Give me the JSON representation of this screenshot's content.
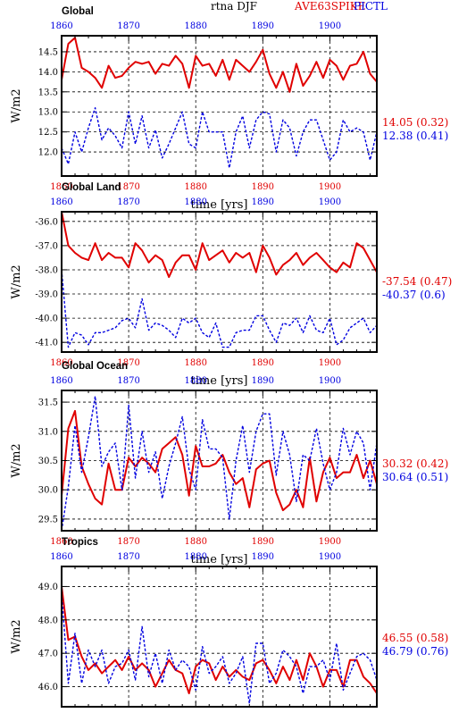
{
  "header": {
    "title": "rtna DJF",
    "series_label_1": "AVE63SPIKE",
    "series_label_2": "PICTL"
  },
  "colors": {
    "series_1": "#e00000",
    "series_2": "#0000e0"
  },
  "chart_data": [
    {
      "type": "line",
      "title": "Global",
      "xlabel": "time [yrs]",
      "ylabel": "W/m2",
      "xlim": [
        1860,
        1907
      ],
      "ylim": [
        11.4,
        14.9
      ],
      "x_ticks": [
        1860,
        1870,
        1880,
        1890,
        1900
      ],
      "y_ticks": [
        12.0,
        12.5,
        13.0,
        13.5,
        14.0,
        14.5
      ],
      "y_tick_labels": [
        "12.0",
        "12.5",
        "13.0",
        "13.5",
        "14.0",
        "14.5"
      ],
      "grid": true,
      "x": [
        1860,
        1861,
        1862,
        1863,
        1864,
        1865,
        1866,
        1867,
        1868,
        1869,
        1870,
        1871,
        1872,
        1873,
        1874,
        1875,
        1876,
        1877,
        1878,
        1879,
        1880,
        1881,
        1882,
        1883,
        1884,
        1885,
        1886,
        1887,
        1888,
        1889,
        1890,
        1891,
        1892,
        1893,
        1894,
        1895,
        1896,
        1897,
        1898,
        1899,
        1900,
        1901,
        1902,
        1903,
        1904,
        1905,
        1906,
        1907
      ],
      "series": [
        {
          "name": "AVE63SPIKE",
          "color": "#e00000",
          "style": "solid",
          "stat": "14.05 (0.32)",
          "values": [
            13.8,
            14.7,
            14.85,
            14.1,
            14.0,
            13.85,
            13.6,
            14.15,
            13.85,
            13.9,
            14.1,
            14.25,
            14.2,
            14.25,
            13.95,
            14.2,
            14.15,
            14.4,
            14.2,
            13.6,
            14.4,
            14.15,
            14.2,
            13.9,
            14.3,
            13.8,
            14.3,
            14.15,
            14.0,
            14.25,
            14.55,
            13.95,
            13.6,
            14.0,
            13.5,
            14.2,
            13.65,
            13.9,
            14.25,
            13.85,
            14.3,
            14.15,
            13.8,
            14.15,
            14.2,
            14.5,
            13.95,
            13.75
          ]
        },
        {
          "name": "PICTL",
          "color": "#0000e0",
          "style": "dashed",
          "stat": "12.38 (0.41)",
          "values": [
            12.1,
            11.7,
            12.5,
            12.0,
            12.6,
            13.1,
            12.3,
            12.6,
            12.4,
            12.1,
            13.0,
            12.2,
            12.9,
            12.1,
            12.55,
            11.85,
            12.2,
            12.6,
            13.0,
            12.2,
            12.1,
            13.0,
            12.5,
            12.5,
            12.5,
            11.6,
            12.5,
            12.9,
            12.1,
            12.8,
            13.0,
            12.95,
            12.0,
            12.8,
            12.6,
            11.9,
            12.5,
            12.8,
            12.8,
            12.3,
            11.8,
            12.0,
            12.8,
            12.5,
            12.6,
            12.5,
            11.8,
            12.5
          ]
        }
      ]
    },
    {
      "type": "line",
      "title": "Global Land",
      "xlabel": "time [yrs]",
      "ylabel": "W/m2",
      "xlim": [
        1860,
        1907
      ],
      "ylim": [
        -41.4,
        -35.6
      ],
      "x_ticks": [
        1860,
        1870,
        1880,
        1890,
        1900
      ],
      "y_ticks": [
        -41,
        -40,
        -39,
        -38,
        -37,
        -36
      ],
      "y_tick_labels": [
        "-41.0",
        "-40.0",
        "-39.0",
        "-38.0",
        "-37.0",
        "-36.0"
      ],
      "grid": true,
      "x": [
        1860,
        1861,
        1862,
        1863,
        1864,
        1865,
        1866,
        1867,
        1868,
        1869,
        1870,
        1871,
        1872,
        1873,
        1874,
        1875,
        1876,
        1877,
        1878,
        1879,
        1880,
        1881,
        1882,
        1883,
        1884,
        1885,
        1886,
        1887,
        1888,
        1889,
        1890,
        1891,
        1892,
        1893,
        1894,
        1895,
        1896,
        1897,
        1898,
        1899,
        1900,
        1901,
        1902,
        1903,
        1904,
        1905,
        1906,
        1907
      ],
      "series": [
        {
          "name": "AVE63SPIKE",
          "color": "#e00000",
          "style": "solid",
          "stat": "-37.54 (0.47)",
          "values": [
            -35.6,
            -37.0,
            -37.3,
            -37.5,
            -37.6,
            -36.9,
            -37.6,
            -37.3,
            -37.5,
            -37.5,
            -37.9,
            -36.9,
            -37.2,
            -37.7,
            -37.4,
            -37.6,
            -38.3,
            -37.7,
            -37.4,
            -37.4,
            -38.0,
            -36.9,
            -37.6,
            -37.4,
            -37.2,
            -37.7,
            -37.3,
            -37.5,
            -37.3,
            -38.1,
            -37.0,
            -37.5,
            -38.2,
            -37.8,
            -37.6,
            -37.3,
            -37.8,
            -37.5,
            -37.3,
            -37.6,
            -37.9,
            -38.1,
            -37.7,
            -37.9,
            -36.9,
            -37.1,
            -37.6,
            -38.1
          ]
        },
        {
          "name": "PICTL",
          "color": "#0000e0",
          "style": "dashed",
          "stat": "-40.37 (0.6)",
          "values": [
            -38.0,
            -41.2,
            -40.6,
            -40.7,
            -41.1,
            -40.6,
            -40.6,
            -40.5,
            -40.4,
            -40.1,
            -40.0,
            -40.4,
            -39.2,
            -40.5,
            -40.2,
            -40.3,
            -40.5,
            -40.8,
            -40.0,
            -40.2,
            -40.0,
            -40.6,
            -40.8,
            -40.2,
            -41.2,
            -41.2,
            -40.6,
            -40.5,
            -40.5,
            -39.9,
            -39.9,
            -40.5,
            -41.0,
            -40.2,
            -40.3,
            -40.0,
            -40.6,
            -39.9,
            -40.5,
            -40.6,
            -40.0,
            -41.1,
            -40.9,
            -40.4,
            -40.2,
            -40.0,
            -40.6,
            -40.3
          ]
        }
      ]
    },
    {
      "type": "line",
      "title": "Global Ocean",
      "xlabel": "time [yrs]",
      "ylabel": "W/m2",
      "xlim": [
        1860,
        1907
      ],
      "ylim": [
        29.3,
        31.7
      ],
      "x_ticks": [
        1860,
        1870,
        1880,
        1890,
        1900
      ],
      "y_ticks": [
        29.5,
        30.0,
        30.5,
        31.0,
        31.5
      ],
      "y_tick_labels": [
        "29.5",
        "30.0",
        "30.5",
        "31.0",
        "31.5"
      ],
      "grid": true,
      "x": [
        1860,
        1861,
        1862,
        1863,
        1864,
        1865,
        1866,
        1867,
        1868,
        1869,
        1870,
        1871,
        1872,
        1873,
        1874,
        1875,
        1876,
        1877,
        1878,
        1879,
        1880,
        1881,
        1882,
        1883,
        1884,
        1885,
        1886,
        1887,
        1888,
        1889,
        1890,
        1891,
        1892,
        1893,
        1894,
        1895,
        1896,
        1897,
        1898,
        1899,
        1900,
        1901,
        1902,
        1903,
        1904,
        1905,
        1906,
        1907
      ],
      "series": [
        {
          "name": "AVE63SPIKE",
          "color": "#e00000",
          "style": "solid",
          "stat": "30.32 (0.42)",
          "values": [
            29.9,
            31.05,
            31.35,
            30.4,
            30.1,
            29.85,
            29.75,
            30.45,
            30.0,
            30.0,
            30.55,
            30.4,
            30.55,
            30.45,
            30.3,
            30.7,
            30.8,
            30.9,
            30.6,
            29.9,
            30.75,
            30.4,
            30.4,
            30.45,
            30.6,
            30.3,
            30.1,
            30.2,
            29.7,
            30.35,
            30.45,
            30.5,
            29.95,
            29.65,
            29.75,
            30.0,
            29.7,
            30.55,
            29.8,
            30.3,
            30.55,
            30.2,
            30.3,
            30.3,
            30.6,
            30.2,
            30.5,
            30.1
          ]
        },
        {
          "name": "PICTL",
          "color": "#0000e0",
          "style": "dashed",
          "stat": "30.64 (0.51)",
          "values": [
            29.3,
            30.05,
            31.1,
            30.3,
            30.9,
            31.6,
            30.4,
            30.65,
            30.8,
            30.0,
            31.45,
            30.2,
            31.0,
            30.3,
            30.65,
            29.85,
            30.4,
            30.8,
            31.25,
            30.35,
            30.0,
            31.2,
            30.7,
            30.7,
            30.55,
            29.5,
            30.5,
            31.1,
            30.3,
            31.0,
            31.3,
            31.3,
            30.25,
            31.0,
            30.6,
            29.8,
            30.6,
            30.5,
            31.05,
            30.45,
            30.0,
            30.3,
            31.05,
            30.6,
            31.0,
            30.8,
            30.0,
            30.8
          ]
        }
      ]
    },
    {
      "type": "line",
      "title": "Tropics",
      "xlabel": "time [yrs]",
      "ylabel": "W/m2",
      "xlim": [
        1860,
        1907
      ],
      "ylim": [
        45.4,
        49.6
      ],
      "x_ticks": [
        1860,
        1870,
        1880,
        1890,
        1900
      ],
      "y_ticks": [
        46.0,
        47.0,
        48.0,
        49.0
      ],
      "y_tick_labels": [
        "46.0",
        "47.0",
        "48.0",
        "49.0"
      ],
      "grid": true,
      "x": [
        1860,
        1861,
        1862,
        1863,
        1864,
        1865,
        1866,
        1867,
        1868,
        1869,
        1870,
        1871,
        1872,
        1873,
        1874,
        1875,
        1876,
        1877,
        1878,
        1879,
        1880,
        1881,
        1882,
        1883,
        1884,
        1885,
        1886,
        1887,
        1888,
        1889,
        1890,
        1891,
        1892,
        1893,
        1894,
        1895,
        1896,
        1897,
        1898,
        1899,
        1900,
        1901,
        1902,
        1903,
        1904,
        1905,
        1906,
        1907
      ],
      "series": [
        {
          "name": "AVE63SPIKE",
          "color": "#e00000",
          "style": "solid",
          "stat": "46.55 (0.58)",
          "values": [
            49.0,
            47.4,
            47.5,
            46.9,
            46.5,
            46.7,
            46.4,
            46.6,
            46.8,
            46.5,
            46.9,
            46.5,
            46.7,
            46.5,
            46.0,
            46.4,
            46.8,
            46.5,
            46.4,
            45.8,
            46.6,
            46.8,
            46.7,
            46.2,
            46.6,
            46.3,
            46.5,
            46.3,
            46.2,
            46.7,
            46.8,
            46.5,
            46.1,
            46.6,
            46.2,
            46.8,
            46.2,
            47.0,
            46.6,
            46.0,
            46.5,
            46.5,
            46.0,
            46.8,
            46.8,
            46.3,
            46.1,
            45.8
          ]
        },
        {
          "name": "PICTL",
          "color": "#0000e0",
          "style": "dashed",
          "stat": "46.79 (0.76)",
          "values": [
            48.8,
            46.1,
            47.6,
            46.1,
            47.1,
            46.6,
            47.1,
            46.1,
            46.6,
            46.7,
            47.1,
            46.2,
            47.8,
            46.3,
            47.0,
            46.1,
            47.1,
            46.5,
            46.8,
            46.6,
            45.9,
            47.2,
            46.4,
            46.6,
            46.9,
            46.1,
            46.4,
            46.9,
            45.5,
            47.3,
            47.3,
            46.1,
            46.4,
            47.1,
            46.9,
            46.6,
            45.8,
            46.6,
            46.6,
            46.8,
            46.2,
            47.3,
            45.9,
            46.4,
            46.9,
            47.0,
            46.8,
            46.2
          ]
        }
      ]
    }
  ]
}
